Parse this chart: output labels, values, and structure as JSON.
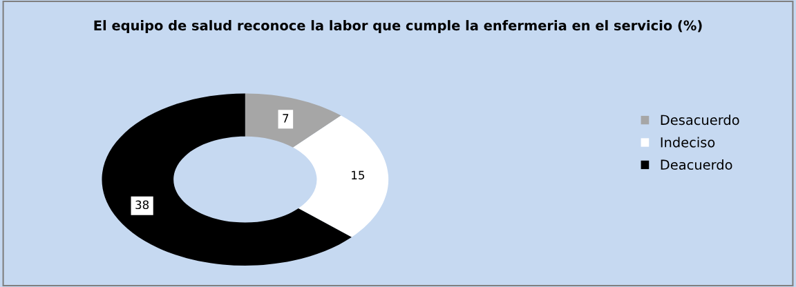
{
  "chart_data": {
    "type": "donut",
    "title": "El equipo de salud reconoce la labor que cumple la enfermeria en el servicio (%)",
    "categories": [
      "Desacuerdo",
      "Indeciso",
      "Deacuerdo"
    ],
    "values": [
      7,
      15,
      38
    ],
    "colors": [
      "#a6a6a6",
      "#ffffff",
      "#000000"
    ],
    "data_labels": true,
    "legend": "right"
  }
}
